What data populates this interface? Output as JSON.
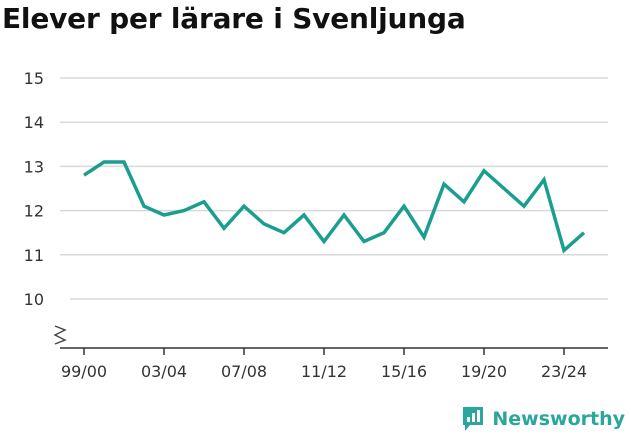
{
  "chart_data": {
    "type": "line",
    "title": "Elever per lärare i Svenljunga",
    "xlabel": "",
    "ylabel": "",
    "ylim": [
      10,
      15
    ],
    "y_ticks": [
      10,
      11,
      12,
      13,
      14,
      15
    ],
    "x_tick_labels": [
      "99/00",
      "03/04",
      "07/08",
      "11/12",
      "15/16",
      "19/20",
      "23/24"
    ],
    "grid": true,
    "axis_break": true,
    "series": [
      {
        "name": "Elever per lärare",
        "color": "#1a9e8f",
        "x": [
          "99/00",
          "00/01",
          "01/02",
          "02/03",
          "03/04",
          "04/05",
          "05/06",
          "06/07",
          "07/08",
          "08/09",
          "09/10",
          "10/11",
          "11/12",
          "12/13",
          "13/14",
          "14/15",
          "15/16",
          "16/17",
          "17/18",
          "18/19",
          "19/20",
          "20/21",
          "21/22",
          "22/23",
          "23/24",
          "24/25"
        ],
        "values": [
          12.8,
          13.1,
          13.1,
          12.1,
          11.9,
          12.0,
          12.2,
          11.6,
          12.1,
          11.7,
          11.5,
          11.9,
          11.3,
          11.9,
          11.3,
          11.5,
          12.1,
          11.4,
          12.6,
          12.2,
          12.9,
          12.5,
          12.1,
          12.7,
          11.1,
          11.5
        ]
      }
    ]
  },
  "brand": {
    "name": "Newsworthy",
    "color": "#2ba69c"
  }
}
